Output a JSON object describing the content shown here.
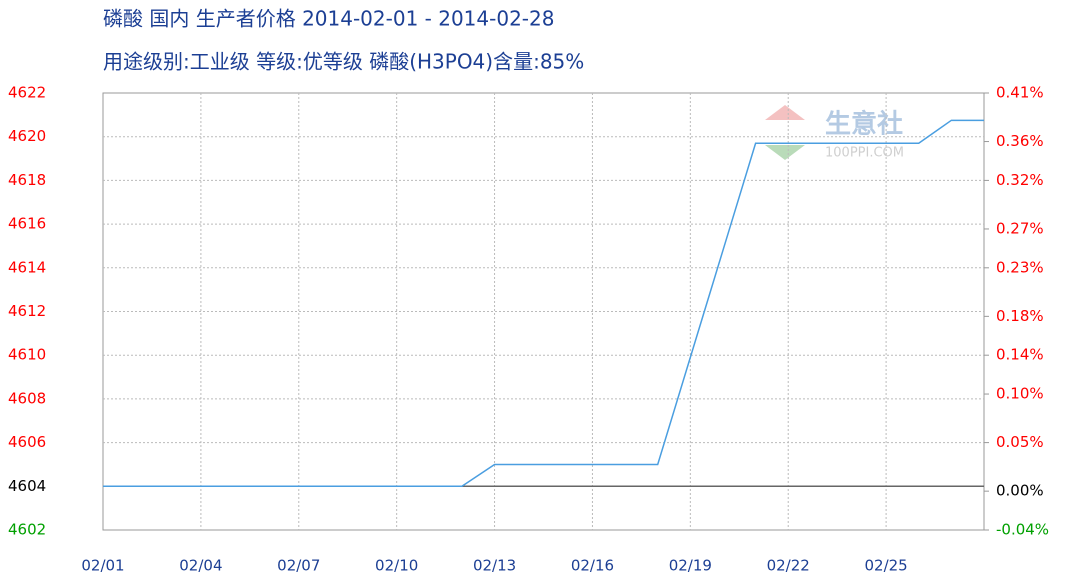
{
  "chart_data": {
    "type": "line",
    "title": "磷酸 国内 生产者价格 2014-02-01 - 2014-02-28",
    "subtitle": "用途级别:工业级 等级:优等级 磷酸(H3PO4)含量:85%",
    "watermark": [
      "生意社",
      "100PPI.COM"
    ],
    "categories": [
      "02/01",
      null,
      null,
      "02/04",
      null,
      null,
      "02/07",
      null,
      null,
      "02/10",
      null,
      null,
      "02/13",
      null,
      null,
      "02/16",
      null,
      null,
      "02/19",
      null,
      null,
      "02/22",
      null,
      null,
      "02/25",
      null,
      null,
      null
    ],
    "series": [
      {
        "name": "磷酸",
        "color": "#4a9ee0",
        "values": [
          4604,
          4604,
          4604,
          4604,
          4604,
          4604,
          4604,
          4604,
          4604,
          4604,
          4604,
          4604,
          4605,
          4605,
          4605,
          4605,
          4605,
          4605,
          4609.9,
          4614.8,
          4619.7,
          4619.7,
          4619.7,
          4619.7,
          4619.7,
          4619.7,
          4620.75,
          4620.75
        ]
      }
    ],
    "ylim": [
      4602,
      4622
    ],
    "yticks": [
      4602,
      4604,
      4606,
      4608,
      4610,
      4612,
      4614,
      4616,
      4618,
      4620,
      4622
    ],
    "y2lim": [
      -0.04,
      0.41
    ],
    "y2ticks": [
      {
        "value": -0.04,
        "label": "-0.04%"
      },
      {
        "value": 0.0,
        "label": "0.00%"
      },
      {
        "value": 0.05,
        "label": "0.05%"
      },
      {
        "value": 0.1,
        "label": "0.10%"
      },
      {
        "value": 0.14,
        "label": "0.14%"
      },
      {
        "value": 0.18,
        "label": "0.18%"
      },
      {
        "value": 0.23,
        "label": "0.23%"
      },
      {
        "value": 0.27,
        "label": "0.27%"
      },
      {
        "value": 0.32,
        "label": "0.32%"
      },
      {
        "value": 0.36,
        "label": "0.36%"
      },
      {
        "value": 0.41,
        "label": "0.41%"
      }
    ],
    "baseline": 4604,
    "grid": true
  }
}
